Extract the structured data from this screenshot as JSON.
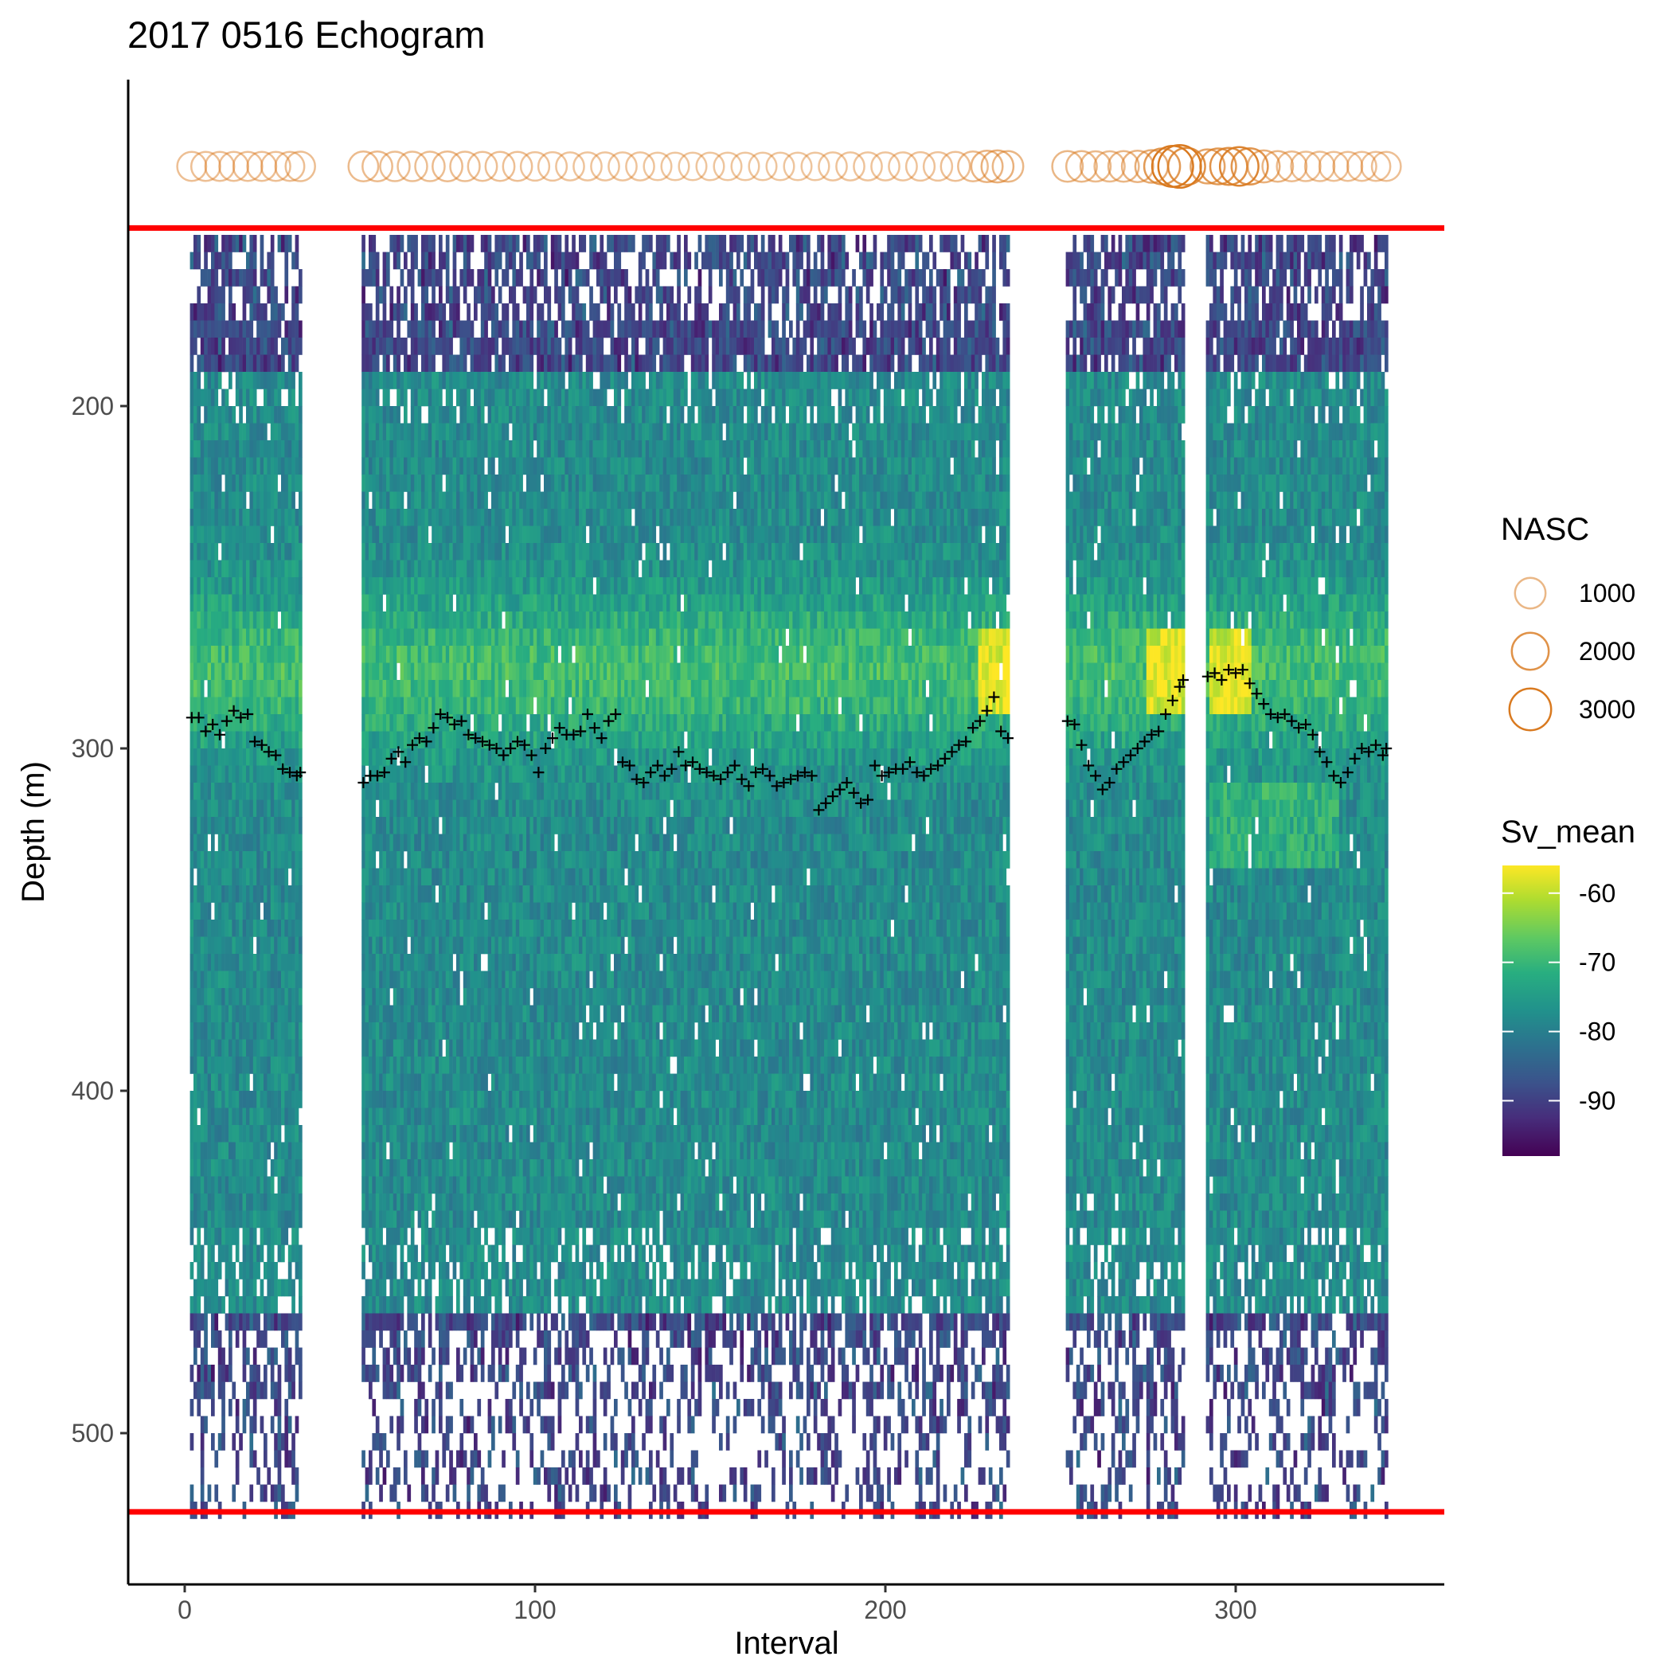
{
  "chart_data": {
    "type": "heatmap",
    "title": "2017 0516 Echogram",
    "xlabel": "Interval",
    "ylabel": "Depth (m)",
    "xlim": [
      -15,
      360
    ],
    "ylim": [
      135,
      560
    ],
    "y_reversed": true,
    "x_ticks": [
      "0",
      "100",
      "200",
      "300"
    ],
    "y_ticks": [
      "200",
      "300",
      "400",
      "500"
    ],
    "grid": false,
    "legend_position": "right",
    "heatmap": {
      "name": "Sv_mean",
      "colorscale": "viridis",
      "color_range": [
        -98,
        -56
      ],
      "colorbar_ticks": [
        "-60",
        "-70",
        "-80",
        "-90"
      ],
      "segments": [
        {
          "x_start": 2,
          "x_end": 33
        },
        {
          "x_start": 51,
          "x_end": 235
        },
        {
          "x_start": 252,
          "x_end": 285
        },
        {
          "x_start": 292,
          "x_end": 343
        }
      ],
      "depth_range": [
        150,
        525
      ],
      "cell_depth_m": 5,
      "high_layer_depth_m": 275
    },
    "reference_lines": {
      "color": "#ff0000",
      "depths": [
        148,
        523
      ]
    },
    "nasc_series": {
      "name": "NASC",
      "color": "#d97a20",
      "depth": 130,
      "legend_sizes": [
        "1000",
        "2000",
        "3000"
      ],
      "points": [
        {
          "x": 2,
          "v": 800
        },
        {
          "x": 6,
          "v": 800
        },
        {
          "x": 10,
          "v": 800
        },
        {
          "x": 14,
          "v": 800
        },
        {
          "x": 18,
          "v": 800
        },
        {
          "x": 22,
          "v": 800
        },
        {
          "x": 26,
          "v": 800
        },
        {
          "x": 30,
          "v": 800
        },
        {
          "x": 33,
          "v": 850
        },
        {
          "x": 51,
          "v": 900
        },
        {
          "x": 55,
          "v": 900
        },
        {
          "x": 60,
          "v": 850
        },
        {
          "x": 65,
          "v": 850
        },
        {
          "x": 70,
          "v": 850
        },
        {
          "x": 75,
          "v": 900
        },
        {
          "x": 80,
          "v": 850
        },
        {
          "x": 85,
          "v": 800
        },
        {
          "x": 90,
          "v": 800
        },
        {
          "x": 95,
          "v": 800
        },
        {
          "x": 100,
          "v": 750
        },
        {
          "x": 105,
          "v": 750
        },
        {
          "x": 110,
          "v": 700
        },
        {
          "x": 115,
          "v": 700
        },
        {
          "x": 120,
          "v": 700
        },
        {
          "x": 125,
          "v": 700
        },
        {
          "x": 130,
          "v": 700
        },
        {
          "x": 135,
          "v": 650
        },
        {
          "x": 140,
          "v": 650
        },
        {
          "x": 145,
          "v": 650
        },
        {
          "x": 150,
          "v": 650
        },
        {
          "x": 155,
          "v": 650
        },
        {
          "x": 160,
          "v": 650
        },
        {
          "x": 165,
          "v": 650
        },
        {
          "x": 170,
          "v": 650
        },
        {
          "x": 175,
          "v": 650
        },
        {
          "x": 180,
          "v": 650
        },
        {
          "x": 185,
          "v": 700
        },
        {
          "x": 190,
          "v": 700
        },
        {
          "x": 195,
          "v": 700
        },
        {
          "x": 200,
          "v": 700
        },
        {
          "x": 205,
          "v": 700
        },
        {
          "x": 210,
          "v": 750
        },
        {
          "x": 215,
          "v": 750
        },
        {
          "x": 220,
          "v": 800
        },
        {
          "x": 225,
          "v": 900
        },
        {
          "x": 229,
          "v": 1100
        },
        {
          "x": 232,
          "v": 1200
        },
        {
          "x": 235,
          "v": 1000
        },
        {
          "x": 252,
          "v": 1000
        },
        {
          "x": 256,
          "v": 1000
        },
        {
          "x": 260,
          "v": 950
        },
        {
          "x": 264,
          "v": 950
        },
        {
          "x": 268,
          "v": 1000
        },
        {
          "x": 272,
          "v": 1100
        },
        {
          "x": 276,
          "v": 1300
        },
        {
          "x": 279,
          "v": 1800
        },
        {
          "x": 282,
          "v": 2800
        },
        {
          "x": 284,
          "v": 3200
        },
        {
          "x": 286,
          "v": 2000
        },
        {
          "x": 292,
          "v": 1500
        },
        {
          "x": 295,
          "v": 1800
        },
        {
          "x": 298,
          "v": 2000
        },
        {
          "x": 301,
          "v": 2300
        },
        {
          "x": 304,
          "v": 1900
        },
        {
          "x": 308,
          "v": 1200
        },
        {
          "x": 312,
          "v": 1000
        },
        {
          "x": 316,
          "v": 900
        },
        {
          "x": 320,
          "v": 850
        },
        {
          "x": 324,
          "v": 850
        },
        {
          "x": 328,
          "v": 800
        },
        {
          "x": 332,
          "v": 800
        },
        {
          "x": 336,
          "v": 800
        },
        {
          "x": 340,
          "v": 800
        },
        {
          "x": 343,
          "v": 800
        }
      ]
    },
    "centre_of_mass_series": {
      "marker": "+",
      "color": "#000000",
      "points": [
        [
          2,
          291
        ],
        [
          4,
          291
        ],
        [
          6,
          295
        ],
        [
          8,
          293
        ],
        [
          10,
          296
        ],
        [
          12,
          292
        ],
        [
          14,
          289
        ],
        [
          16,
          291
        ],
        [
          18,
          290
        ],
        [
          20,
          298
        ],
        [
          22,
          299
        ],
        [
          24,
          301
        ],
        [
          26,
          302
        ],
        [
          28,
          306
        ],
        [
          30,
          307
        ],
        [
          32,
          308
        ],
        [
          33,
          307
        ],
        [
          51,
          310
        ],
        [
          53,
          308
        ],
        [
          55,
          308
        ],
        [
          57,
          307
        ],
        [
          59,
          303
        ],
        [
          61,
          301
        ],
        [
          63,
          304
        ],
        [
          65,
          299
        ],
        [
          67,
          297
        ],
        [
          69,
          298
        ],
        [
          71,
          294
        ],
        [
          73,
          290
        ],
        [
          75,
          291
        ],
        [
          77,
          293
        ],
        [
          79,
          292
        ],
        [
          81,
          296
        ],
        [
          83,
          297
        ],
        [
          85,
          298
        ],
        [
          87,
          299
        ],
        [
          89,
          300
        ],
        [
          91,
          302
        ],
        [
          93,
          300
        ],
        [
          95,
          298
        ],
        [
          97,
          299
        ],
        [
          99,
          302
        ],
        [
          101,
          307
        ],
        [
          103,
          300
        ],
        [
          105,
          297
        ],
        [
          107,
          294
        ],
        [
          109,
          296
        ],
        [
          111,
          296
        ],
        [
          113,
          295
        ],
        [
          115,
          290
        ],
        [
          117,
          294
        ],
        [
          119,
          297
        ],
        [
          121,
          292
        ],
        [
          123,
          290
        ],
        [
          125,
          304
        ],
        [
          127,
          305
        ],
        [
          129,
          309
        ],
        [
          131,
          310
        ],
        [
          133,
          307
        ],
        [
          135,
          305
        ],
        [
          137,
          308
        ],
        [
          139,
          306
        ],
        [
          141,
          301
        ],
        [
          143,
          305
        ],
        [
          145,
          304
        ],
        [
          147,
          306
        ],
        [
          149,
          307
        ],
        [
          151,
          308
        ],
        [
          153,
          309
        ],
        [
          155,
          307
        ],
        [
          157,
          305
        ],
        [
          159,
          309
        ],
        [
          161,
          311
        ],
        [
          163,
          307
        ],
        [
          165,
          306
        ],
        [
          167,
          308
        ],
        [
          169,
          311
        ],
        [
          171,
          310
        ],
        [
          173,
          309
        ],
        [
          175,
          308
        ],
        [
          177,
          307
        ],
        [
          179,
          308
        ],
        [
          181,
          318
        ],
        [
          183,
          316
        ],
        [
          185,
          314
        ],
        [
          187,
          312
        ],
        [
          189,
          310
        ],
        [
          191,
          313
        ],
        [
          193,
          316
        ],
        [
          195,
          315
        ],
        [
          197,
          305
        ],
        [
          199,
          308
        ],
        [
          201,
          307
        ],
        [
          203,
          306
        ],
        [
          205,
          306
        ],
        [
          207,
          304
        ],
        [
          209,
          307
        ],
        [
          211,
          308
        ],
        [
          213,
          306
        ],
        [
          215,
          305
        ],
        [
          217,
          303
        ],
        [
          219,
          301
        ],
        [
          221,
          299
        ],
        [
          223,
          298
        ],
        [
          225,
          294
        ],
        [
          227,
          292
        ],
        [
          229,
          289
        ],
        [
          231,
          285
        ],
        [
          233,
          295
        ],
        [
          235,
          297
        ],
        [
          252,
          292
        ],
        [
          254,
          293
        ],
        [
          256,
          299
        ],
        [
          258,
          305
        ],
        [
          260,
          308
        ],
        [
          262,
          312
        ],
        [
          264,
          310
        ],
        [
          266,
          306
        ],
        [
          268,
          304
        ],
        [
          270,
          302
        ],
        [
          272,
          300
        ],
        [
          274,
          298
        ],
        [
          276,
          296
        ],
        [
          278,
          295
        ],
        [
          280,
          290
        ],
        [
          282,
          286
        ],
        [
          284,
          282
        ],
        [
          285,
          280
        ],
        [
          292,
          279
        ],
        [
          294,
          278
        ],
        [
          296,
          280
        ],
        [
          298,
          277
        ],
        [
          300,
          278
        ],
        [
          302,
          277
        ],
        [
          304,
          281
        ],
        [
          306,
          284
        ],
        [
          308,
          287
        ],
        [
          310,
          290
        ],
        [
          312,
          291
        ],
        [
          314,
          290
        ],
        [
          316,
          292
        ],
        [
          318,
          294
        ],
        [
          320,
          293
        ],
        [
          322,
          296
        ],
        [
          324,
          301
        ],
        [
          326,
          304
        ],
        [
          328,
          308
        ],
        [
          330,
          310
        ],
        [
          332,
          307
        ],
        [
          334,
          303
        ],
        [
          336,
          300
        ],
        [
          338,
          301
        ],
        [
          340,
          299
        ],
        [
          342,
          302
        ],
        [
          343,
          300
        ]
      ]
    }
  }
}
